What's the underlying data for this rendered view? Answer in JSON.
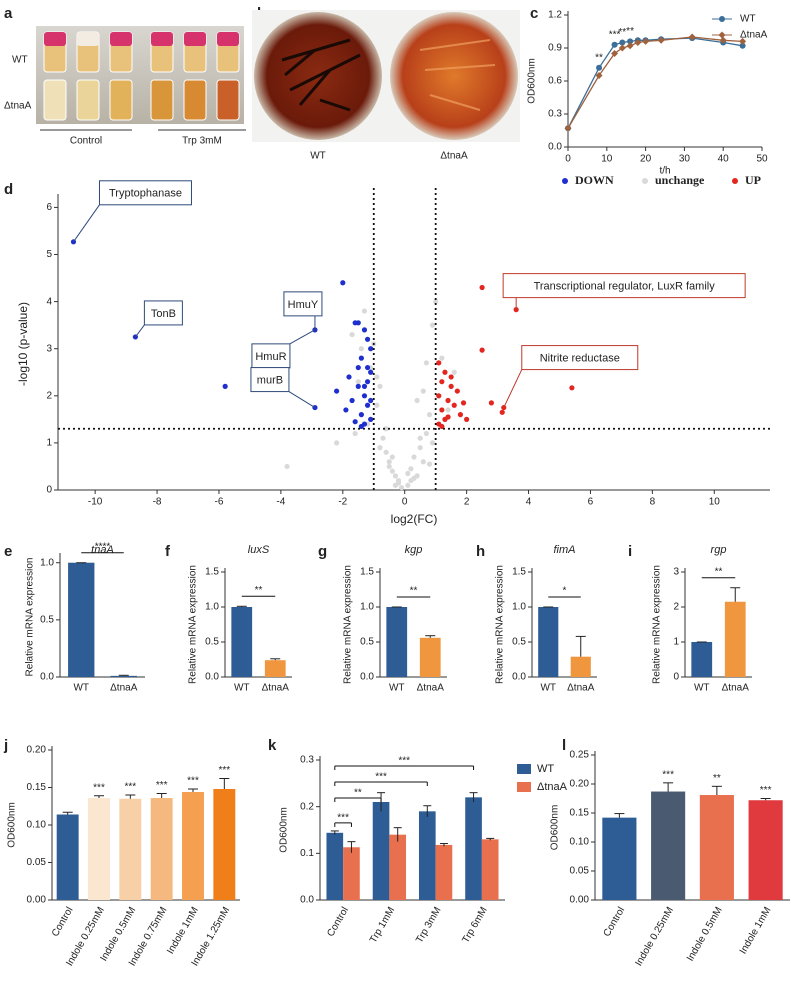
{
  "panel_labels": [
    "a",
    "b",
    "c",
    "d",
    "e",
    "f",
    "g",
    "h",
    "i",
    "j",
    "k",
    "l"
  ],
  "photo_a": {
    "row_labels": [
      "WT",
      "ΔtnaA"
    ],
    "group_labels": [
      "Control",
      "Trp 3mM"
    ]
  },
  "photo_b": {
    "labels": [
      "WT",
      "ΔtnaA"
    ]
  },
  "chart_data": [
    {
      "type": "line",
      "x": [
        0,
        8,
        12,
        14,
        16,
        18,
        20,
        24,
        32,
        40,
        45
      ],
      "xlim": [
        0,
        50
      ],
      "xticks": [
        0,
        10,
        20,
        30,
        40,
        50
      ],
      "ylim": [
        0,
        1.2
      ],
      "yticks": [
        {
          "value": 0,
          "label": "0.0"
        },
        0.3,
        0.6,
        0.9,
        1.2
      ],
      "xlabel": "t/h",
      "ylabel": "OD600nm",
      "series": [
        {
          "name": "WT",
          "color": "#3b6e98",
          "marker": "circle",
          "values": [
            0.17,
            0.72,
            0.93,
            0.95,
            0.96,
            0.97,
            0.97,
            0.98,
            0.99,
            0.95,
            0.92
          ]
        },
        {
          "name": "ΔtnaA",
          "color": "#a0613d",
          "marker": "diamond",
          "values": [
            0.17,
            0.65,
            0.85,
            0.9,
            0.92,
            0.95,
            0.96,
            0.97,
            1.0,
            0.97,
            0.96
          ]
        }
      ],
      "annotations": {
        "x": [
          8,
          12,
          14,
          16
        ],
        "labels": [
          "**",
          "***",
          "**",
          "**"
        ]
      }
    },
    {
      "type": "scatter",
      "xlim": [
        -11.2,
        11.8
      ],
      "xticks": [
        -10,
        -8,
        -6,
        -4,
        -2,
        0,
        2,
        4,
        6,
        8,
        10
      ],
      "ylim": [
        0,
        6.2
      ],
      "yticks": [
        0,
        1,
        2,
        3,
        4,
        5,
        6
      ],
      "xlabel": "log2(FC)",
      "ylabel": "-log10 (p-value)",
      "thresholds": {
        "x": [
          -1,
          1
        ],
        "y": 1.3
      },
      "series": [
        {
          "name": "DOWN",
          "color": "#1f2fcf",
          "x": [
            -10.7,
            -8.7,
            -5.8,
            -2.9,
            -2.9,
            -2.0,
            -1.6,
            -1.5,
            -1.3,
            -1.2,
            -1.1,
            -1.8,
            -1.4,
            -1.2,
            -1.5,
            -1.1,
            -1.3,
            -1.7,
            -1.2,
            -1.4,
            -1.1,
            -1.6,
            -1.3,
            -2.2,
            -1.9,
            -1.2,
            -1.5,
            -1.1,
            -1.4,
            -1.3
          ],
          "y": [
            5.27,
            3.25,
            2.2,
            3.4,
            1.75,
            4.4,
            3.55,
            3.55,
            3.4,
            3.2,
            3.0,
            2.4,
            2.8,
            2.6,
            2.2,
            2.5,
            2.0,
            1.9,
            1.8,
            1.6,
            1.5,
            1.45,
            1.4,
            2.1,
            1.7,
            2.3,
            2.6,
            1.9,
            1.35,
            2.2
          ]
        },
        {
          "name": "unchange",
          "color": "#d9d9d9",
          "x": [
            -0.3,
            0.2,
            -0.5,
            0.6,
            -0.8,
            0.9,
            -0.1,
            0.4,
            -1.2,
            1.3,
            -0.6,
            0.7,
            -0.9,
            1.1,
            -0.4,
            0.3,
            -1.5,
            1.6,
            -0.2,
            0.1,
            -0.7,
            0.8,
            -1.1,
            1.2,
            -0.5,
            0.5,
            -1.4,
            -1.7,
            0.9,
            -0.8,
            0.6,
            -0.3,
            0.2,
            -1.0,
            1.0,
            -1.3,
            -0.6,
            0.4,
            0.7,
            -0.9,
            -2.2,
            -3.8,
            0.3,
            0.5,
            -0.4,
            0.1,
            -0.2,
            0.8,
            -1.6,
            1.4
          ],
          "y": [
            0.1,
            0.2,
            0.5,
            0.6,
            0.9,
            1.0,
            0.05,
            0.3,
            1.4,
            1.5,
            0.8,
            1.2,
            1.8,
            2.0,
            0.4,
            0.7,
            2.3,
            2.5,
            0.15,
            0.1,
            1.1,
            1.6,
            2.6,
            2.8,
            0.6,
            0.9,
            3.0,
            3.3,
            3.5,
            2.2,
            2.1,
            0.3,
            0.45,
            3.1,
            4.0,
            3.8,
            1.3,
            1.9,
            2.7,
            2.4,
            1.0,
            0.5,
            0.25,
            1.1,
            0.7,
            0.35,
            0.2,
            0.55,
            1.2,
            1.7
          ]
        },
        {
          "name": "UP",
          "color": "#e3261f",
          "x": [
            2.5,
            2.5,
            3.6,
            5.4,
            2.8,
            3.15,
            3.2,
            1.1,
            1.2,
            1.3,
            1.5,
            1.1,
            1.4,
            1.6,
            1.2,
            1.8,
            1.3,
            1.1,
            1.5,
            1.7,
            2.0,
            1.2,
            1.4,
            1.9
          ],
          "y": [
            4.3,
            2.97,
            3.83,
            2.17,
            1.85,
            1.65,
            1.75,
            2.7,
            2.3,
            2.5,
            2.2,
            2.0,
            1.9,
            1.8,
            1.7,
            1.6,
            1.5,
            1.4,
            2.4,
            2.1,
            1.5,
            1.35,
            1.55,
            1.85
          ]
        }
      ],
      "callouts": [
        {
          "label": "Tryptophanase",
          "x": -10.7,
          "y": 5.27
        },
        {
          "label": "TonB",
          "x": -8.7,
          "y": 3.25
        },
        {
          "label": "HmuY",
          "x": -2.9,
          "y": 3.4
        },
        {
          "label": "HmuR",
          "x": -2.9,
          "y": 3.4
        },
        {
          "label": "murB",
          "x": -2.9,
          "y": 1.75
        },
        {
          "label": "Transcriptional regulator, LuxR family",
          "x": 3.6,
          "y": 3.83
        },
        {
          "label": "Nitrite reductase",
          "x": 3.2,
          "y": 1.75
        }
      ]
    },
    {
      "type": "bar",
      "title": "tnaA",
      "categories": [
        "WT",
        "ΔtnaA"
      ],
      "values": [
        1,
        0.01
      ],
      "errors": [
        0,
        0.005
      ],
      "colors": [
        "#2e5d95",
        "#2e5d95"
      ],
      "ylim": [
        0,
        1.05
      ],
      "yticks": [
        {
          "value": 0,
          "label": "0.0"
        },
        0.5,
        {
          "value": 1,
          "label": "1.0"
        }
      ],
      "ylabel": "Relative mRNA expression",
      "significance": "****"
    },
    {
      "type": "bar",
      "title": "luxS",
      "categories": [
        "WT",
        "ΔtnaA"
      ],
      "values": [
        1,
        0.24
      ],
      "errors": [
        0.01,
        0.02
      ],
      "colors": [
        "#2e5d95",
        "#f0963e"
      ],
      "ylim": [
        0,
        1.5
      ],
      "yticks": [
        {
          "value": 0,
          "label": "0.0"
        },
        0.5,
        {
          "value": 1,
          "label": "1.0"
        },
        1.5
      ],
      "ylabel": "Relative mRNA expression",
      "significance": "**"
    },
    {
      "type": "bar",
      "title": "kgp",
      "categories": [
        "WT",
        "ΔtnaA"
      ],
      "values": [
        1,
        0.56
      ],
      "errors": [
        0,
        0.03
      ],
      "colors": [
        "#2e5d95",
        "#f0963e"
      ],
      "ylim": [
        0,
        1.5
      ],
      "yticks": [
        {
          "value": 0,
          "label": "0.0"
        },
        0.5,
        {
          "value": 1,
          "label": "1.0"
        },
        1.5
      ],
      "ylabel": "Relative mRNA expression",
      "significance": "**"
    },
    {
      "type": "bar",
      "title": "fimA",
      "categories": [
        "WT",
        "ΔtnaA"
      ],
      "values": [
        1,
        0.29
      ],
      "errors": [
        0,
        0.29
      ],
      "colors": [
        "#2e5d95",
        "#f0963e"
      ],
      "ylim": [
        0,
        1.5
      ],
      "yticks": [
        {
          "value": 0,
          "label": "0.0"
        },
        0.5,
        {
          "value": 1,
          "label": "1.0"
        },
        1.5
      ],
      "ylabel": "Relative mRNA expression",
      "significance": "*"
    },
    {
      "type": "bar",
      "title": "rgp",
      "categories": [
        "WT",
        "ΔtnaA"
      ],
      "values": [
        1,
        2.15
      ],
      "errors": [
        0,
        0.4
      ],
      "colors": [
        "#2e5d95",
        "#f0963e"
      ],
      "ylim": [
        0,
        3
      ],
      "yticks": [
        0,
        1,
        2,
        3
      ],
      "ylabel": "Relative mRNA expression",
      "significance": "**"
    },
    {
      "type": "bar",
      "categories": [
        "Control",
        "Indole 0.25mM",
        "Indole 0.5mM",
        "Indole 0.75mM",
        "Indole 1mM",
        "Indole 1.25mM"
      ],
      "values": [
        0.114,
        0.136,
        0.135,
        0.136,
        0.144,
        0.148
      ],
      "errors": [
        0.003,
        0.003,
        0.005,
        0.006,
        0.004,
        0.014
      ],
      "colors": [
        "#2e5d95",
        "#fbe6cf",
        "#f8d0a8",
        "#f5b87f",
        "#f5a050",
        "#f07f1a"
      ],
      "ylim": [
        0,
        0.2
      ],
      "yticks": [
        {
          "value": 0,
          "label": "0.00"
        },
        0.05,
        {
          "value": 0.1,
          "label": "0.10"
        },
        0.15,
        {
          "value": 0.2,
          "label": "0.20"
        }
      ],
      "ylabel": "OD600nm",
      "annotations": [
        null,
        "***",
        "***",
        "***",
        "***",
        "***"
      ]
    },
    {
      "type": "grouped_bar",
      "categories": [
        "Control",
        "Trp 1mM",
        "Trp 3mM",
        "Trp 6mM"
      ],
      "series": [
        {
          "name": "WT",
          "color": "#2e5d95",
          "values": [
            0.144,
            0.21,
            0.19,
            0.22
          ],
          "errors": [
            0.004,
            0.02,
            0.012,
            0.01
          ]
        },
        {
          "name": "ΔtnaA",
          "color": "#e8704f",
          "values": [
            0.113,
            0.14,
            0.118,
            0.13
          ],
          "errors": [
            0.012,
            0.015,
            0.003,
            0.002
          ]
        }
      ],
      "ylim": [
        0,
        0.3
      ],
      "yticks": [
        {
          "value": 0,
          "label": "0.0"
        },
        0.1,
        0.2,
        0.3
      ],
      "ylabel": "OD600nm",
      "brackets": [
        "***",
        "**",
        "***",
        "***"
      ]
    },
    {
      "type": "bar",
      "categories": [
        "Control",
        "Indole 0.25mM",
        "Indole 0.5mM",
        "Indole 1mM"
      ],
      "values": [
        0.142,
        0.187,
        0.181,
        0.172
      ],
      "errors": [
        0.007,
        0.015,
        0.015,
        0.003
      ],
      "colors": [
        "#2e5d95",
        "#4a5a70",
        "#e8704f",
        "#e03a3e"
      ],
      "ylim": [
        0,
        0.25
      ],
      "yticks": [
        {
          "value": 0,
          "label": "0.00"
        },
        0.05,
        {
          "value": 0.1,
          "label": "0.10"
        },
        0.15,
        {
          "value": 0.2,
          "label": "0.20"
        },
        0.25
      ],
      "ylabel": "OD600nm",
      "annotations": [
        null,
        "***",
        "**",
        "***"
      ]
    }
  ]
}
